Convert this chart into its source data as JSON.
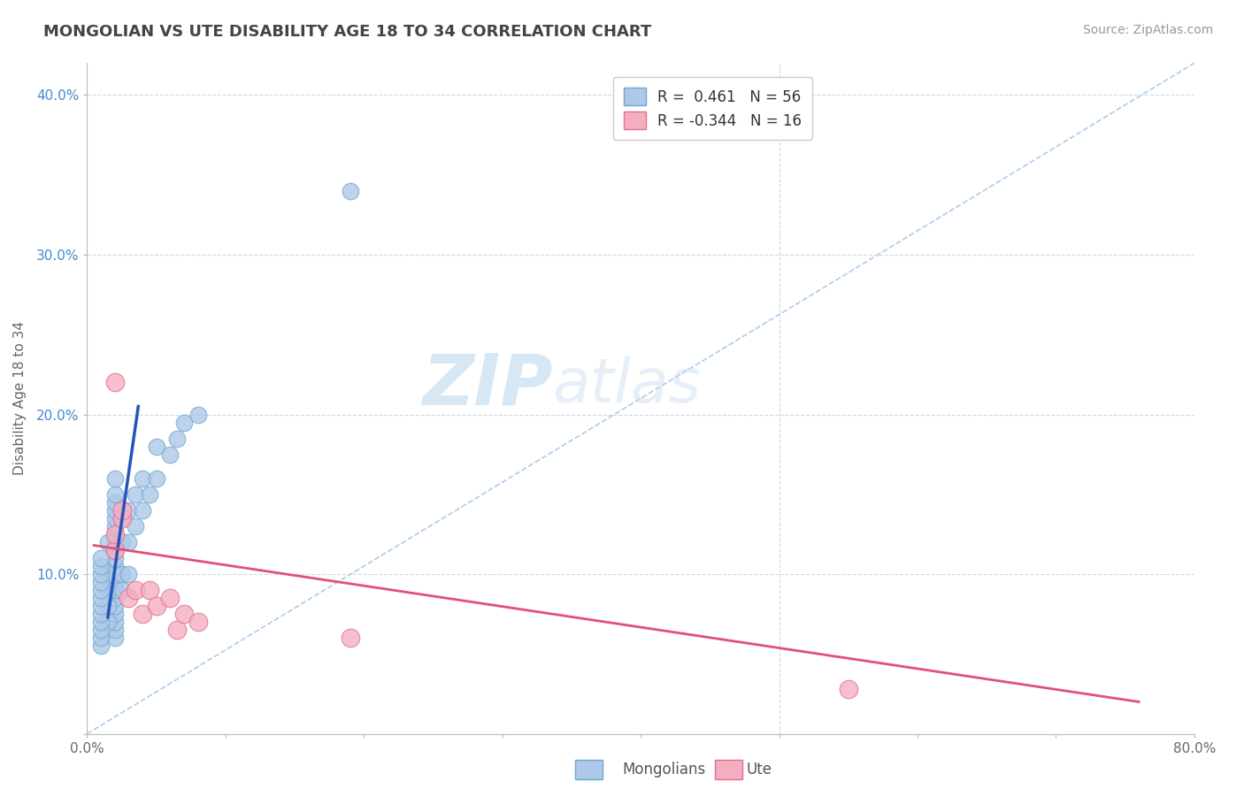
{
  "title": "MONGOLIAN VS UTE DISABILITY AGE 18 TO 34 CORRELATION CHART",
  "source": "Source: ZipAtlas.com",
  "ylabel": "Disability Age 18 to 34",
  "xlim": [
    0.0,
    0.8
  ],
  "ylim": [
    0.0,
    0.42
  ],
  "mongolian_color": "#adc8e8",
  "mongolian_edge": "#6fa8d0",
  "ute_color": "#f5aec0",
  "ute_edge": "#e07090",
  "trend_mongolian_color": "#2255bb",
  "trend_ute_color": "#e0507a",
  "diagonal_color": "#aaccee",
  "r_mongolian": 0.461,
  "n_mongolian": 56,
  "r_ute": -0.344,
  "n_ute": 16,
  "mongolian_x": [
    0.02,
    0.02,
    0.02,
    0.02,
    0.02,
    0.02,
    0.02,
    0.02,
    0.02,
    0.02,
    0.02,
    0.02,
    0.02,
    0.02,
    0.02,
    0.02,
    0.02,
    0.02,
    0.02,
    0.02,
    0.015,
    0.015,
    0.015,
    0.015,
    0.015,
    0.025,
    0.025,
    0.025,
    0.025,
    0.03,
    0.03,
    0.03,
    0.035,
    0.035,
    0.04,
    0.04,
    0.045,
    0.05,
    0.05,
    0.06,
    0.065,
    0.07,
    0.08,
    0.01,
    0.01,
    0.01,
    0.01,
    0.01,
    0.01,
    0.01,
    0.01,
    0.01,
    0.01,
    0.01,
    0.01,
    0.19
  ],
  "mongolian_y": [
    0.06,
    0.065,
    0.07,
    0.075,
    0.08,
    0.085,
    0.09,
    0.095,
    0.1,
    0.105,
    0.11,
    0.115,
    0.12,
    0.125,
    0.13,
    0.135,
    0.14,
    0.145,
    0.15,
    0.16,
    0.07,
    0.08,
    0.09,
    0.1,
    0.12,
    0.09,
    0.1,
    0.12,
    0.135,
    0.1,
    0.12,
    0.14,
    0.13,
    0.15,
    0.14,
    0.16,
    0.15,
    0.16,
    0.18,
    0.175,
    0.185,
    0.195,
    0.2,
    0.055,
    0.06,
    0.065,
    0.07,
    0.075,
    0.08,
    0.085,
    0.09,
    0.095,
    0.1,
    0.105,
    0.11,
    0.34
  ],
  "ute_x": [
    0.02,
    0.02,
    0.02,
    0.025,
    0.025,
    0.03,
    0.035,
    0.04,
    0.045,
    0.05,
    0.06,
    0.065,
    0.07,
    0.08,
    0.19,
    0.55
  ],
  "ute_y": [
    0.115,
    0.125,
    0.22,
    0.135,
    0.14,
    0.085,
    0.09,
    0.075,
    0.09,
    0.08,
    0.085,
    0.065,
    0.075,
    0.07,
    0.06,
    0.028
  ],
  "background_color": "#ffffff",
  "grid_color": "#d0d8e8",
  "watermark_zip_color": "#c8ddf0",
  "watermark_atlas_color": "#a8c8e8"
}
